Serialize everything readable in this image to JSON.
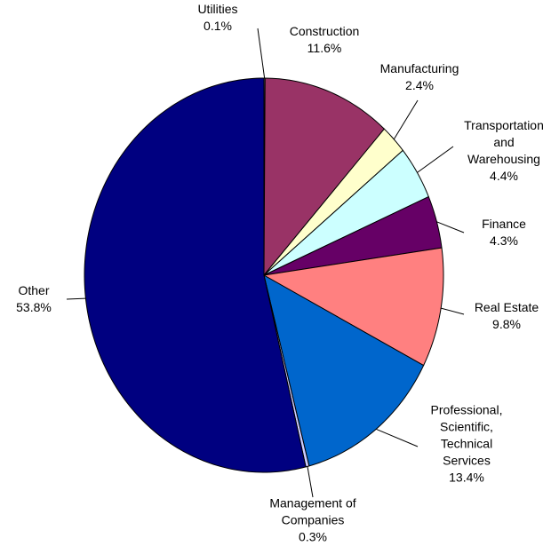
{
  "chart_data": {
    "type": "pie",
    "categories": [
      "Utilities",
      "Construction",
      "Manufacturing",
      "Transportation and Warehousing",
      "Finance",
      "Real Estate",
      "Professional, Scientific, Technical Services",
      "Management of Companies",
      "Other"
    ],
    "values": [
      0.1,
      11.6,
      2.4,
      4.4,
      4.3,
      9.8,
      13.4,
      0.3,
      53.8
    ],
    "value_labels": [
      "0.1%",
      "11.6%",
      "2.4%",
      "4.4%",
      "4.3%",
      "9.8%",
      "13.4%",
      "0.3%",
      "53.8%"
    ],
    "colors": [
      "#ffffff",
      "#993366",
      "#ffffcc",
      "#ccffff",
      "#660066",
      "#ff8080",
      "#0066cc",
      "#ccccff",
      "#000080"
    ]
  }
}
